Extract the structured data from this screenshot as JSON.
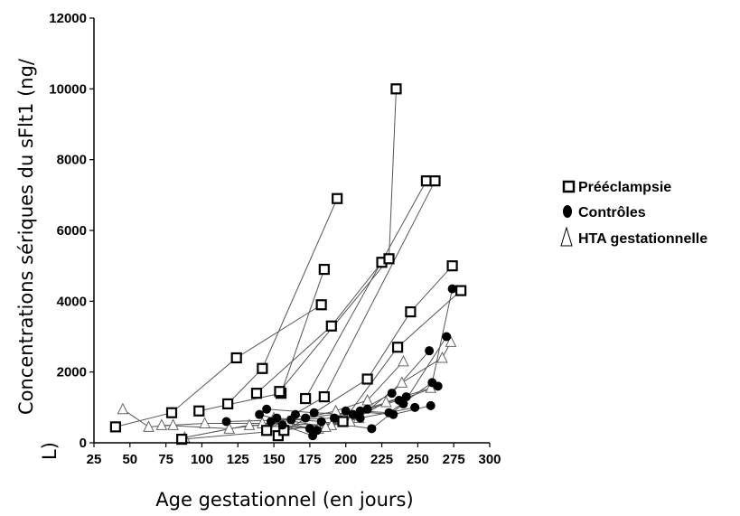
{
  "chart_data": {
    "type": "scatter",
    "xlabel": "Age gestationnel  (en jours)",
    "ylabel": "Concentrations sériques du sFlt1 (ng/L)",
    "ylabel_lines": [
      "Concentrations sériques du sFlt1 (ng/",
      "L)"
    ],
    "xlim": [
      25,
      300
    ],
    "ylim": [
      0,
      12000
    ],
    "x_ticks": [
      "25",
      "50",
      "75",
      "100",
      "125",
      "150",
      "175",
      "200",
      "225",
      "250",
      "275",
      "300"
    ],
    "y_ticks": [
      "0",
      "2000",
      "4000",
      "6000",
      "8000",
      "10000",
      "12000"
    ],
    "grid": false,
    "legend_position": "right",
    "series": [
      {
        "name": "Prééclampsie",
        "marker": "square",
        "trajectories": [
          [
            [
              40,
              450
            ],
            [
              79,
              850
            ],
            [
              124,
              2400
            ],
            [
              183,
              3900
            ]
          ],
          [
            [
              98,
              900
            ],
            [
              155,
              1400
            ],
            [
              185,
              4900
            ]
          ],
          [
            [
              118,
              1100
            ],
            [
              142,
              2100
            ],
            [
              194,
              6900
            ]
          ],
          [
            [
              138,
              1400
            ],
            [
              190,
              3300
            ],
            [
              225,
              5100
            ]
          ],
          [
            [
              154,
              1450
            ],
            [
              230,
              5200
            ],
            [
              235,
              10000
            ]
          ],
          [
            [
              172,
              1250
            ],
            [
              256,
              7400
            ]
          ],
          [
            [
              145,
              350
            ],
            [
              185,
              1300
            ],
            [
              262,
              7400
            ]
          ],
          [
            [
              153,
              200
            ],
            [
              215,
              1800
            ],
            [
              245,
              3700
            ],
            [
              274,
              5000
            ]
          ],
          [
            [
              86,
              100
            ],
            [
              157,
              350
            ],
            [
              198,
              600
            ],
            [
              236,
              2700
            ],
            [
              280,
              4300
            ]
          ]
        ]
      },
      {
        "name": "Contrôles",
        "marker": "circle",
        "trajectories": [
          [
            [
              117,
              600
            ],
            [
              162,
              650
            ],
            [
              192,
              700
            ],
            [
              242,
              1300
            ]
          ],
          [
            [
              140,
              800
            ],
            [
              175,
              400
            ],
            [
              210,
              700
            ],
            [
              248,
              1000
            ]
          ],
          [
            [
              145,
              950
            ],
            [
              178,
              850
            ],
            [
              205,
              800
            ],
            [
              232,
              1400
            ],
            [
              258,
              2600
            ]
          ],
          [
            [
              148,
              600
            ],
            [
              180,
              350
            ],
            [
              215,
              950
            ],
            [
              237,
              1200
            ],
            [
              264,
              1600
            ]
          ],
          [
            [
              152,
              700
            ],
            [
              183,
              600
            ],
            [
              218,
              400
            ],
            [
              240,
              1100
            ],
            [
              270,
              3000
            ]
          ],
          [
            [
              165,
              800
            ],
            [
              172,
              700
            ],
            [
              210,
              900
            ],
            [
              230,
              850
            ],
            [
              260,
              1700
            ],
            [
              274,
              4350
            ]
          ],
          [
            [
              156,
              500
            ],
            [
              177,
              200
            ],
            [
              200,
              900
            ],
            [
              233,
              800
            ],
            [
              259,
              1050
            ]
          ]
        ]
      },
      {
        "name": "HTA gestationnelle",
        "marker": "triangle",
        "trajectories": [
          [
            [
              45,
              950
            ],
            [
              63,
              450
            ],
            [
              80,
              500
            ],
            [
              102,
              550
            ],
            [
              142,
              550
            ],
            [
              190,
              500
            ]
          ],
          [
            [
              72,
              500
            ],
            [
              119,
              400
            ],
            [
              160,
              600
            ],
            [
              193,
              900
            ],
            [
              215,
              1200
            ],
            [
              240,
              2300
            ]
          ],
          [
            [
              88,
              150
            ],
            [
              133,
              500
            ],
            [
              181,
              400
            ],
            [
              209,
              700
            ],
            [
              239,
              1700
            ],
            [
              267,
              2400
            ],
            [
              273,
              2850
            ]
          ],
          [
            [
              150,
              700
            ],
            [
              186,
              450
            ],
            [
              203,
              600
            ],
            [
              228,
              1150
            ],
            [
              259,
              1550
            ]
          ]
        ]
      }
    ]
  },
  "legend": {
    "items": [
      {
        "label": "Prééclampsie",
        "marker": "square"
      },
      {
        "label": "Contrôles",
        "marker": "circle"
      },
      {
        "label": "HTA gestationnelle",
        "marker": "triangle"
      }
    ]
  }
}
